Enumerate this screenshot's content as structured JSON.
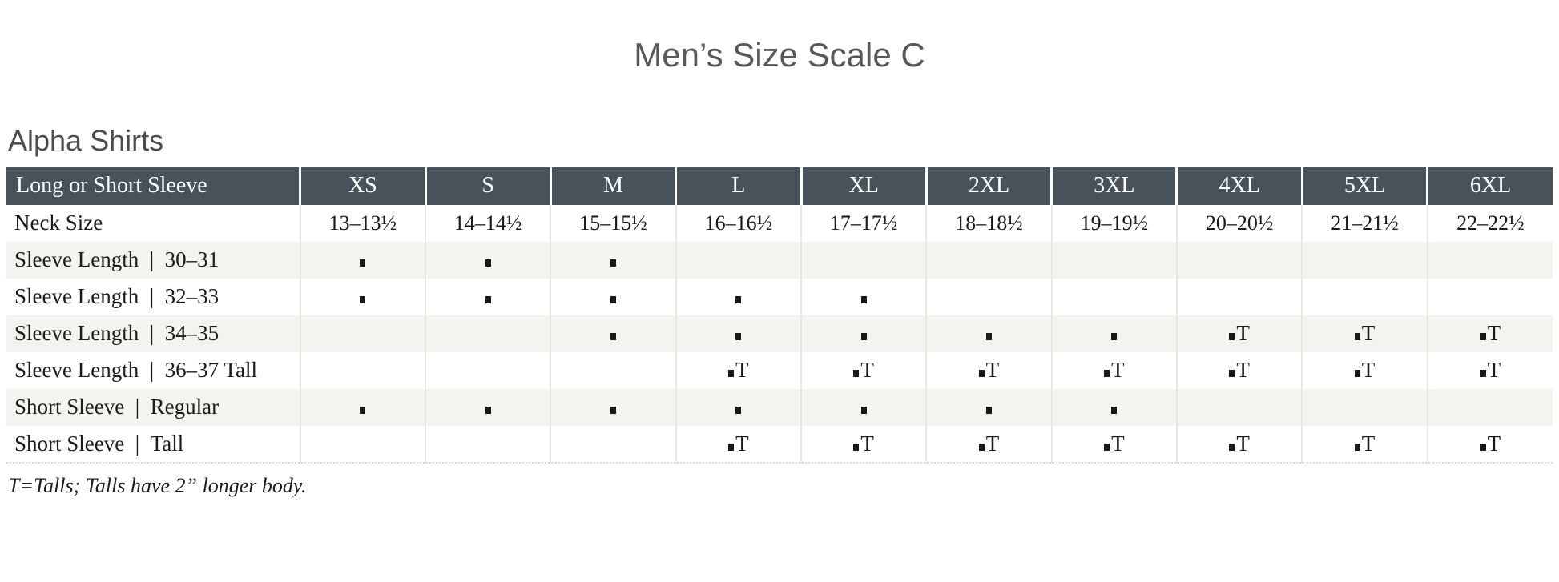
{
  "header": {
    "title": "Men’s Size Scale C"
  },
  "section": {
    "heading": "Alpha Shirts"
  },
  "size_table": {
    "corner_header": "Long or Short Sleeve",
    "columns": [
      "XS",
      "S",
      "M",
      "L",
      "XL",
      "2XL",
      "3XL",
      "4XL",
      "5XL",
      "6XL"
    ],
    "neck_row": {
      "label": "Neck Size",
      "values": [
        "13–13½",
        "14–14½",
        "15–15½",
        "16–16½",
        "17–17½",
        "18–18½",
        "19–19½",
        "20–20½",
        "21–21½",
        "22–22½"
      ]
    },
    "rows": [
      {
        "label": "Sleeve Length | 30–31",
        "shaded": true,
        "marks": [
          "s",
          "s",
          "s",
          "",
          "",
          "",
          "",
          "",
          "",
          ""
        ]
      },
      {
        "label": "Sleeve Length | 32–33",
        "shaded": false,
        "marks": [
          "s",
          "s",
          "s",
          "s",
          "s",
          "",
          "",
          "",
          "",
          ""
        ]
      },
      {
        "label": "Sleeve Length | 34–35",
        "shaded": true,
        "marks": [
          "",
          "",
          "s",
          "s",
          "s",
          "s",
          "s",
          "t",
          "t",
          "t"
        ]
      },
      {
        "label": "Sleeve Length | 36–37 Tall",
        "shaded": false,
        "marks": [
          "",
          "",
          "",
          "t",
          "t",
          "t",
          "t",
          "t",
          "t",
          "t"
        ]
      },
      {
        "label": "Short Sleeve | Regular",
        "shaded": true,
        "marks": [
          "s",
          "s",
          "s",
          "s",
          "s",
          "s",
          "s",
          "",
          "",
          ""
        ]
      },
      {
        "label": "Short Sleeve | Tall",
        "shaded": false,
        "marks": [
          "",
          "",
          "",
          "t",
          "t",
          "t",
          "t",
          "t",
          "t",
          "t"
        ]
      }
    ],
    "tall_mark_letter": "T",
    "mark_legend": {
      "s": "available",
      "t": "available-tall"
    }
  },
  "footnote": "T=Talls; Talls have 2” longer body.",
  "colors": {
    "header_bg": "#47525a",
    "row_shaded": "#f4f3f0",
    "heading_text": "#57585a",
    "body_text": "#1b1b1b",
    "divider": "#e9e7e3",
    "header_divider": "#ffffff"
  }
}
